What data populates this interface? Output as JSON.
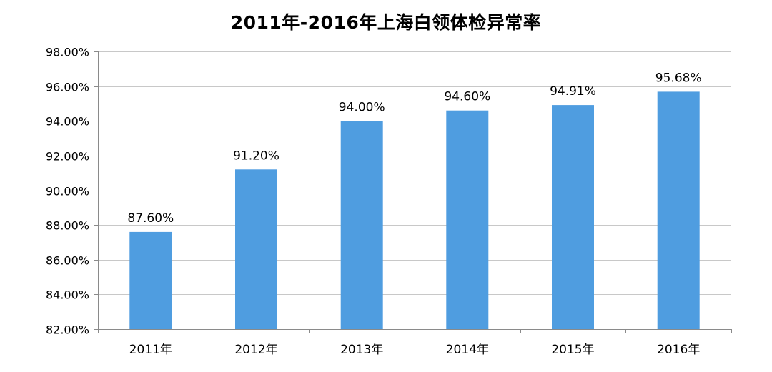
{
  "chart_data": {
    "type": "bar",
    "title": "2011年-2016年上海白领体检异常率",
    "categories": [
      "2011年",
      "2012年",
      "2013年",
      "2014年",
      "2015年",
      "2016年"
    ],
    "values": [
      87.6,
      91.2,
      94.0,
      94.6,
      94.91,
      95.68
    ],
    "data_labels": [
      "87.60%",
      "91.20%",
      "94.00%",
      "94.60%",
      "94.91%",
      "95.68%"
    ],
    "xlabel": "",
    "ylabel": "",
    "ylim": [
      82,
      98
    ],
    "yticks": [
      82,
      84,
      86,
      88,
      90,
      92,
      94,
      96,
      98
    ],
    "ytick_labels": [
      "82.00%",
      "84.00%",
      "86.00%",
      "88.00%",
      "90.00%",
      "92.00%",
      "94.00%",
      "96.00%",
      "98.00%"
    ],
    "grid": true,
    "legend": "none",
    "colors": {
      "bar": "#4f9de0",
      "grid": "#c8c8c8",
      "axis": "#8a8a8a"
    }
  }
}
